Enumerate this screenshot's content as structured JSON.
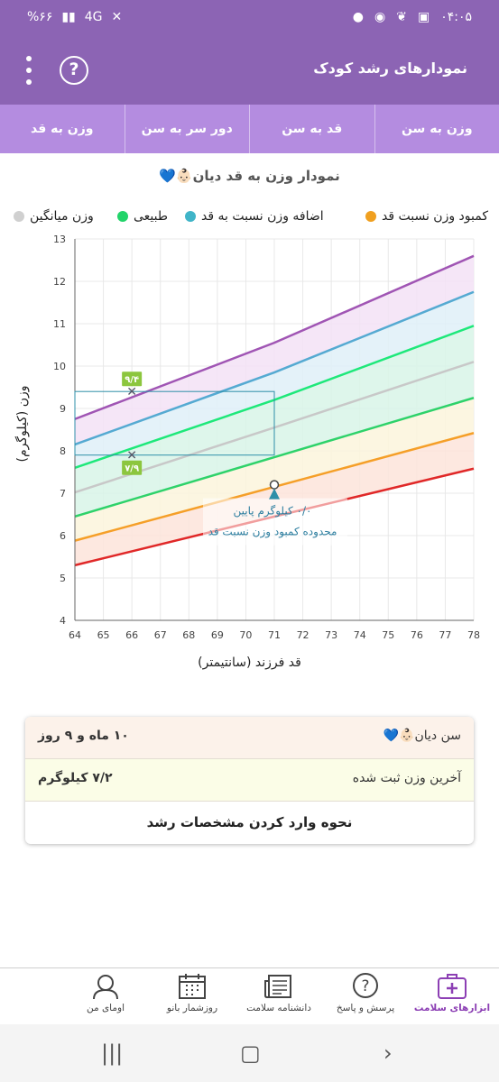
{
  "status_bar": {
    "time": "۰۴:۰۵",
    "battery": "%۶۶",
    "network": "4G"
  },
  "header": {
    "title": "نمودارهای رشد کودک",
    "help_glyph": "?"
  },
  "tabs": [
    {
      "label": "وزن به قد",
      "active": true
    },
    {
      "label": "دور سر به سن",
      "active": false
    },
    {
      "label": "قد به سن",
      "active": false
    },
    {
      "label": "وزن به سن",
      "active": false
    }
  ],
  "chart_title": "نمودار وزن به قد دیان👶🏻💙",
  "legend": [
    {
      "label": "کمبود وزن نسبت قد",
      "color": "#f0a020"
    },
    {
      "label": "اضافه وزن نسبت به قد",
      "color": "#40b4c8"
    },
    {
      "label": "طبیعی",
      "color": "#22d46a"
    },
    {
      "label": "وزن میانگین",
      "color": "#d0d0d0"
    }
  ],
  "chart_data": {
    "type": "line",
    "xlabel": "قد فرزند (سانتیمتر)",
    "ylabel": "وزن (کیلوگرم)",
    "xlim": [
      64,
      78
    ],
    "ylim": [
      4,
      13
    ],
    "x_ticks": [
      64,
      65,
      66,
      67,
      68,
      69,
      70,
      71,
      72,
      73,
      74,
      75,
      76,
      77,
      78
    ],
    "y_ticks": [
      4,
      5,
      6,
      7,
      8,
      9,
      10,
      11,
      12,
      13
    ],
    "grid": true,
    "series": [
      {
        "color": "#a055b4",
        "values": [
          [
            64,
            8.75
          ],
          [
            71,
            10.55
          ],
          [
            78,
            12.6
          ]
        ]
      },
      {
        "color": "#55aad2",
        "values": [
          [
            64,
            8.15
          ],
          [
            71,
            9.85
          ],
          [
            78,
            11.75
          ]
        ]
      },
      {
        "color": "#1ee87a",
        "values": [
          [
            64,
            7.6
          ],
          [
            71,
            9.2
          ],
          [
            78,
            10.95
          ]
        ]
      },
      {
        "color": "#c8c8c8",
        "values": [
          [
            64,
            7.02
          ],
          [
            71,
            8.55
          ],
          [
            78,
            10.1
          ]
        ]
      },
      {
        "color": "#2ed26a",
        "values": [
          [
            64,
            6.45
          ],
          [
            71,
            7.85
          ],
          [
            78,
            9.25
          ]
        ]
      },
      {
        "color": "#f59f28",
        "values": [
          [
            64,
            5.88
          ],
          [
            71,
            7.15
          ],
          [
            78,
            8.42
          ]
        ]
      },
      {
        "color": "#e02828",
        "values": [
          [
            64,
            5.3
          ],
          [
            71,
            6.45
          ],
          [
            78,
            7.58
          ]
        ]
      }
    ],
    "band_fills": [
      "#f3e2f6",
      "#dff0f8",
      "#d8f5e8",
      "#d8f5e8",
      "#fbf4dc",
      "#fde4da"
    ],
    "markers": [
      {
        "x": 66,
        "y": 9.4,
        "label": "۹/۴"
      },
      {
        "x": 66,
        "y": 7.9,
        "label": "۷/۹"
      }
    ],
    "measurement": {
      "x": 71,
      "y": 7.2
    },
    "annotation": [
      "۰/۰ کیلوگرم پایین",
      "محدوده کمبود وزن نسبت قد"
    ]
  },
  "card": {
    "age_label": "سن دیان👶🏻💙",
    "age_value": "۱۰ ماه و ۹ روز",
    "weight_label": "آخرین وزن ثبت شده",
    "weight_value": "۷/۲ کیلوگرم",
    "howto": "نحوه وارد کردن مشخصات رشد"
  },
  "bottom_nav": [
    {
      "label": "ابزارهای سلامت",
      "icon": "medkit-icon",
      "active": true
    },
    {
      "label": "پرسش و پاسخ",
      "icon": "question-bubble-icon",
      "active": false
    },
    {
      "label": "دانشنامه سلامت",
      "icon": "newspaper-icon",
      "active": false
    },
    {
      "label": "روزشمار بانو",
      "icon": "calendar-icon",
      "active": false
    },
    {
      "label": "اومای من",
      "icon": "profile-icon",
      "active": false
    }
  ]
}
